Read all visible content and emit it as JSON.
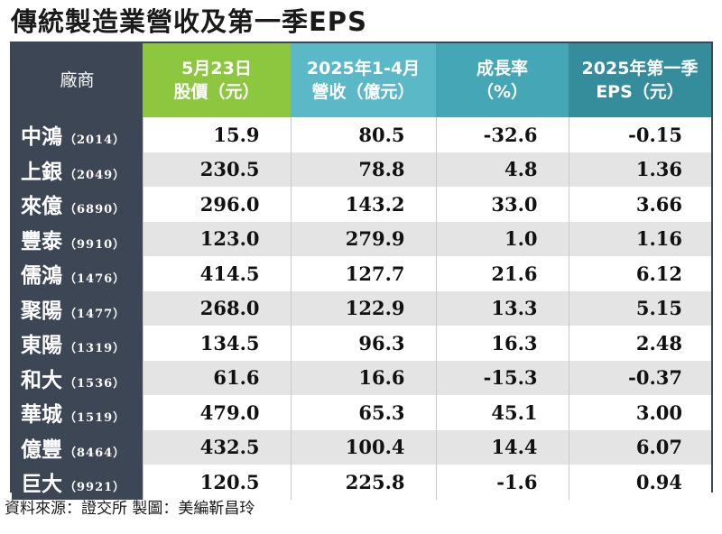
{
  "title": "傳統製造業營收及第一季EPS",
  "headers": [
    {
      "lines": [
        "廠商"
      ]
    },
    {
      "lines": [
        "5月23日",
        "股價（元）"
      ]
    },
    {
      "lines": [
        "2025年1-4月",
        "營收（億元）"
      ]
    },
    {
      "lines": [
        "成長率",
        "（%）"
      ]
    },
    {
      "lines": [
        "2025年第一季",
        "EPS（元）"
      ]
    }
  ],
  "rows": [
    {
      "name": "中鴻",
      "code": "（2014）",
      "price": "15.9",
      "revenue": "80.5",
      "growth": "-32.6",
      "eps": "-0.15"
    },
    {
      "name": "上銀",
      "code": "（2049）",
      "price": "230.5",
      "revenue": "78.8",
      "growth": "4.8",
      "eps": "1.36"
    },
    {
      "name": "來億",
      "code": "（6890）",
      "price": "296.0",
      "revenue": "143.2",
      "growth": "33.0",
      "eps": "3.66"
    },
    {
      "name": "豐泰",
      "code": "（9910）",
      "price": "123.0",
      "revenue": "279.9",
      "growth": "1.0",
      "eps": "1.16"
    },
    {
      "name": "儒鴻",
      "code": "（1476）",
      "price": "414.5",
      "revenue": "127.7",
      "growth": "21.6",
      "eps": "6.12"
    },
    {
      "name": "聚陽",
      "code": "（1477）",
      "price": "268.0",
      "revenue": "122.9",
      "growth": "13.3",
      "eps": "5.15"
    },
    {
      "name": "東陽",
      "code": "（1319）",
      "price": "134.5",
      "revenue": "96.3",
      "growth": "16.3",
      "eps": "2.48"
    },
    {
      "name": "和大",
      "code": "（1536）",
      "price": "61.6",
      "revenue": "16.6",
      "growth": "-15.3",
      "eps": "-0.37"
    },
    {
      "name": "華城",
      "code": "（1519）",
      "price": "479.0",
      "revenue": "65.3",
      "growth": "45.1",
      "eps": "3.00"
    },
    {
      "name": "億豐",
      "code": "（8464）",
      "price": "432.5",
      "revenue": "100.4",
      "growth": "14.4",
      "eps": "6.07"
    },
    {
      "name": "巨大",
      "code": "（9921）",
      "price": "120.5",
      "revenue": "225.8",
      "growth": "-1.6",
      "eps": "0.94"
    }
  ],
  "source": "資料來源：證交所 製圖：美編靳昌玲",
  "colors": {
    "header_dark": "#3d4654",
    "header_green": "#8dc63f",
    "header_teal_1": "#5bb8c6",
    "header_teal_2": "#45a7b5",
    "header_teal_3": "#358d9c",
    "row_alt": "#e4e4e4"
  }
}
